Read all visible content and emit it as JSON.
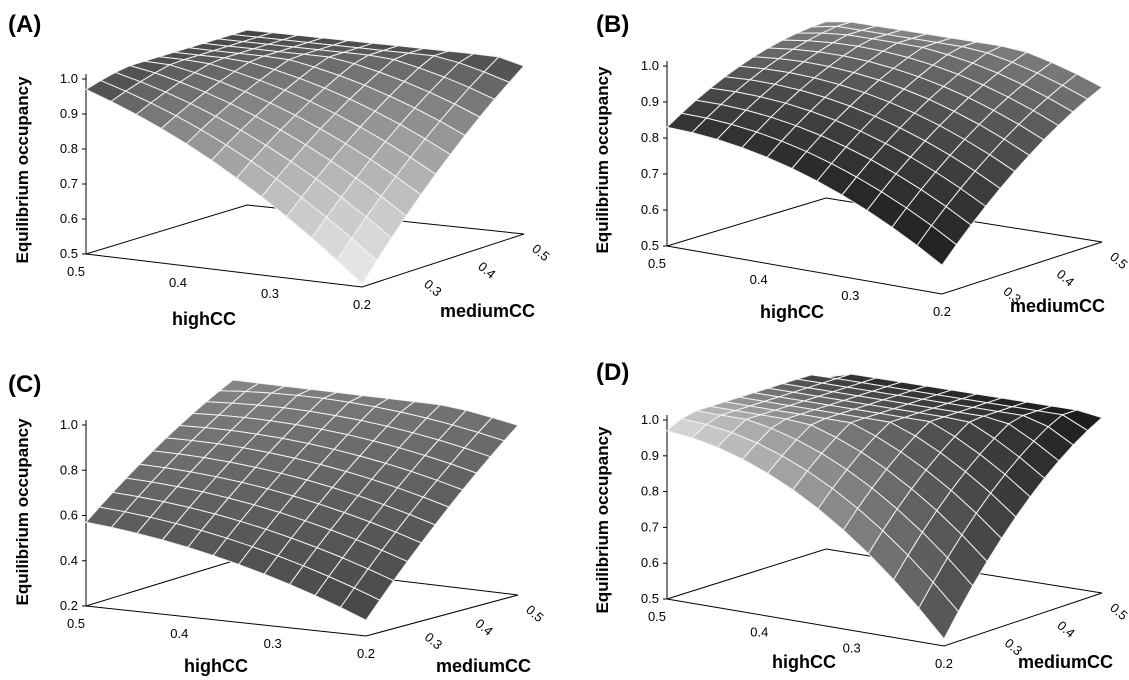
{
  "chart_data": [
    {
      "panel": "(A)",
      "type": "surface",
      "xlabel": "highCC",
      "ylabel": "mediumCC",
      "zlabel": "Equilibrium occupancy",
      "x_ticks": [
        "0.5",
        "0.4",
        "0.3",
        "0.2"
      ],
      "y_ticks": [
        "0.3",
        "0.4",
        "0.5"
      ],
      "z_ticks": [
        "0.5",
        "0.6",
        "0.7",
        "0.8",
        "0.9",
        "1.0"
      ],
      "xlim": [
        0.2,
        0.5
      ],
      "ylim": [
        0.2,
        0.5
      ],
      "zlim": [
        0.5,
        1.0
      ],
      "corners": {
        "high0.5_med0.2": 0.97,
        "high0.2_med0.2": 0.51,
        "high0.5_med0.5": 1.0,
        "high0.2_med0.5": 0.98
      },
      "shade": "light"
    },
    {
      "panel": "(B)",
      "type": "surface",
      "xlabel": "highCC",
      "ylabel": "mediumCC",
      "zlabel": "Equilibrium occupancy",
      "x_ticks": [
        "0.5",
        "0.4",
        "0.3",
        "0.2"
      ],
      "y_ticks": [
        "0.3",
        "0.4",
        "0.5"
      ],
      "z_ticks": [
        "0.5",
        "0.6",
        "0.7",
        "0.8",
        "0.9",
        "1.0"
      ],
      "xlim": [
        0.2,
        0.5
      ],
      "ylim": [
        0.2,
        0.5
      ],
      "zlim": [
        0.5,
        1.0
      ],
      "corners": {
        "high0.5_med0.2": 0.83,
        "high0.2_med0.2": 0.58,
        "high0.5_med0.5": 0.99,
        "high0.2_med0.5": 0.93
      },
      "shade": "dark"
    },
    {
      "panel": "(C)",
      "type": "surface",
      "xlabel": "highCC",
      "ylabel": "mediumCC",
      "zlabel": "Equilibrium occupancy",
      "x_ticks": [
        "0.5",
        "0.4",
        "0.3",
        "0.2"
      ],
      "y_ticks": [
        "0.3",
        "0.4",
        "0.5"
      ],
      "z_ticks": [
        "0.2",
        "0.4",
        "0.6",
        "0.8",
        "1.0"
      ],
      "xlim": [
        0.2,
        0.5
      ],
      "ylim": [
        0.2,
        0.5
      ],
      "zlim": [
        0.2,
        1.0
      ],
      "corners": {
        "high0.5_med0.2": 0.57,
        "high0.2_med0.2": 0.27,
        "high0.5_med0.5": 1.0,
        "high0.2_med0.5": 0.95
      },
      "shade": "medium"
    },
    {
      "panel": "(D)",
      "type": "surface",
      "xlabel": "highCC",
      "ylabel": "mediumCC",
      "zlabel": "Equilibrium occupancy",
      "x_ticks": [
        "0.5",
        "0.4",
        "0.3",
        "0.2"
      ],
      "y_ticks": [
        "0.3",
        "0.4",
        "0.5"
      ],
      "z_ticks": [
        "0.5",
        "0.6",
        "0.7",
        "0.8",
        "0.9",
        "1.0"
      ],
      "xlim": [
        0.2,
        0.5
      ],
      "ylim": [
        0.2,
        0.5
      ],
      "zlim": [
        0.5,
        1.0
      ],
      "corners": {
        "high0.5_med0.2": 0.97,
        "high0.2_med0.2": 0.52,
        "high0.5_med0.5": 0.98,
        "high0.2_med0.5": 0.99
      },
      "shade": "mixed"
    }
  ]
}
